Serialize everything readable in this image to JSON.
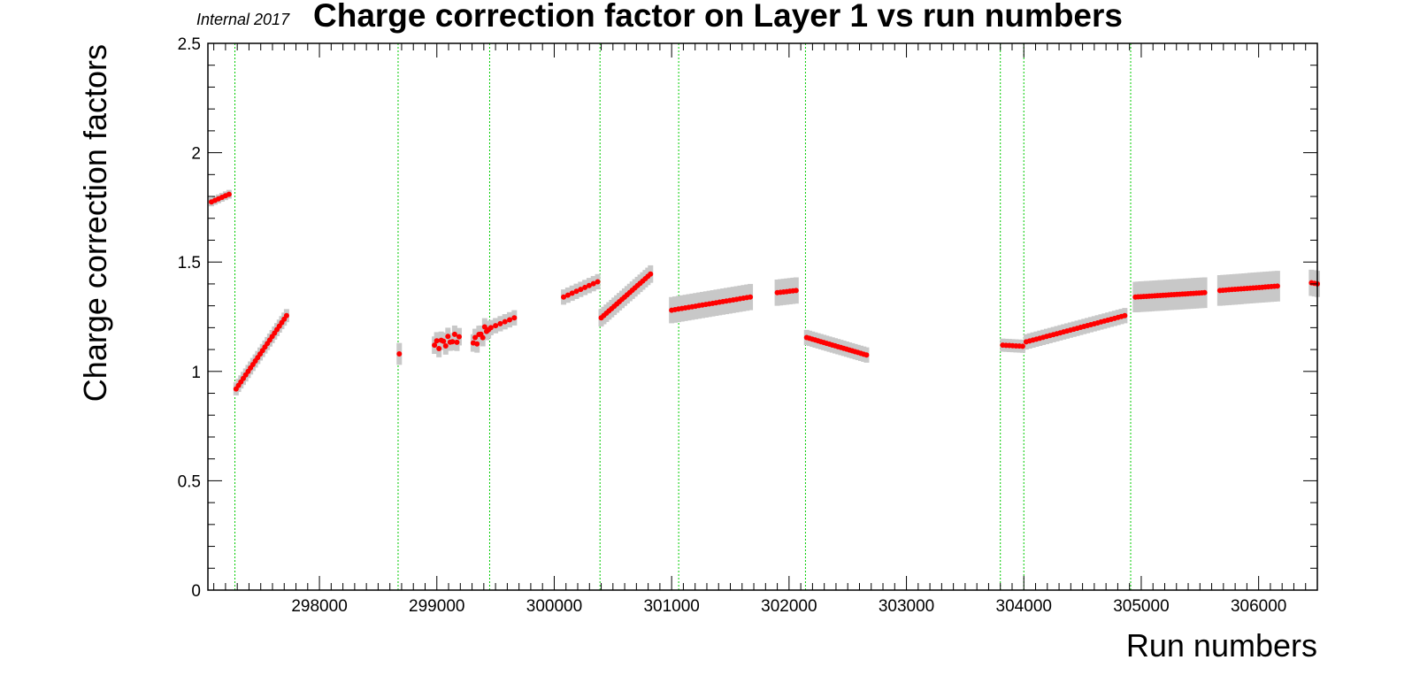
{
  "chart_data": {
    "type": "scatter",
    "title": "Charge correction factor on Layer 1 vs run numbers",
    "subtitle": "Internal 2017",
    "xlabel": "Run numbers",
    "ylabel": "Charge correction factors",
    "xlim": [
      297050,
      306500
    ],
    "ylim": [
      0,
      2.5
    ],
    "x_ticks": [
      298000,
      299000,
      300000,
      301000,
      302000,
      303000,
      304000,
      305000,
      306000
    ],
    "y_ticks": [
      0,
      0.5,
      1,
      1.5,
      2,
      2.5
    ],
    "y_tick_labels": [
      "0",
      "0.5",
      "1",
      "1.5",
      "2",
      "2.5"
    ],
    "grid": false,
    "colors": {
      "marker": "#ff0000",
      "error_bar": "#c8c8c8",
      "boundary_line": "#00cc00",
      "axes": "#000000"
    },
    "boundaries": [
      297280,
      298670,
      299450,
      300390,
      301060,
      302140,
      303800,
      304000,
      304910
    ],
    "segments": [
      {
        "x0": 297080,
        "x1": 297230,
        "y0": 1.775,
        "y1": 1.81,
        "n": 6,
        "err": 0.02
      },
      {
        "x0": 297290,
        "x1": 297720,
        "y0": 0.92,
        "y1": 1.255,
        "n": 22,
        "err": 0.03
      },
      {
        "x0": 298680,
        "x1": 298680,
        "y0": 1.08,
        "y1": 1.08,
        "n": 1,
        "err": 0.05
      },
      {
        "x0": 298980,
        "x1": 299190,
        "y0": 1.12,
        "y1": 1.155,
        "n": 12,
        "err": 0.04,
        "jitter": true
      },
      {
        "x0": 299310,
        "x1": 299440,
        "y0": 1.13,
        "y1": 1.2,
        "n": 9,
        "err": 0.04,
        "jitter": true
      },
      {
        "x0": 299460,
        "x1": 299660,
        "y0": 1.2,
        "y1": 1.245,
        "n": 6,
        "err": 0.035
      },
      {
        "x0": 300080,
        "x1": 300370,
        "y0": 1.34,
        "y1": 1.41,
        "n": 9,
        "err": 0.035
      },
      {
        "x0": 300400,
        "x1": 300820,
        "y0": 1.245,
        "y1": 1.445,
        "n": 20,
        "err": 0.04
      },
      {
        "x0": 301000,
        "x1": 301670,
        "y0": 1.28,
        "y1": 1.34,
        "n": 24,
        "err": 0.06
      },
      {
        "x0": 301900,
        "x1": 302060,
        "y0": 1.36,
        "y1": 1.37,
        "n": 7,
        "err": 0.06
      },
      {
        "x0": 302150,
        "x1": 302660,
        "y0": 1.155,
        "y1": 1.075,
        "n": 22,
        "err": 0.035
      },
      {
        "x0": 303820,
        "x1": 303990,
        "y0": 1.12,
        "y1": 1.115,
        "n": 7,
        "err": 0.03
      },
      {
        "x0": 304020,
        "x1": 304860,
        "y0": 1.135,
        "y1": 1.255,
        "n": 30,
        "err": 0.035
      },
      {
        "x0": 304950,
        "x1": 305540,
        "y0": 1.34,
        "y1": 1.36,
        "n": 26,
        "err": 0.07
      },
      {
        "x0": 305670,
        "x1": 306160,
        "y0": 1.37,
        "y1": 1.39,
        "n": 20,
        "err": 0.07
      },
      {
        "x0": 306450,
        "x1": 306500,
        "y0": 1.405,
        "y1": 1.4,
        "n": 3,
        "err": 0.06
      }
    ]
  }
}
